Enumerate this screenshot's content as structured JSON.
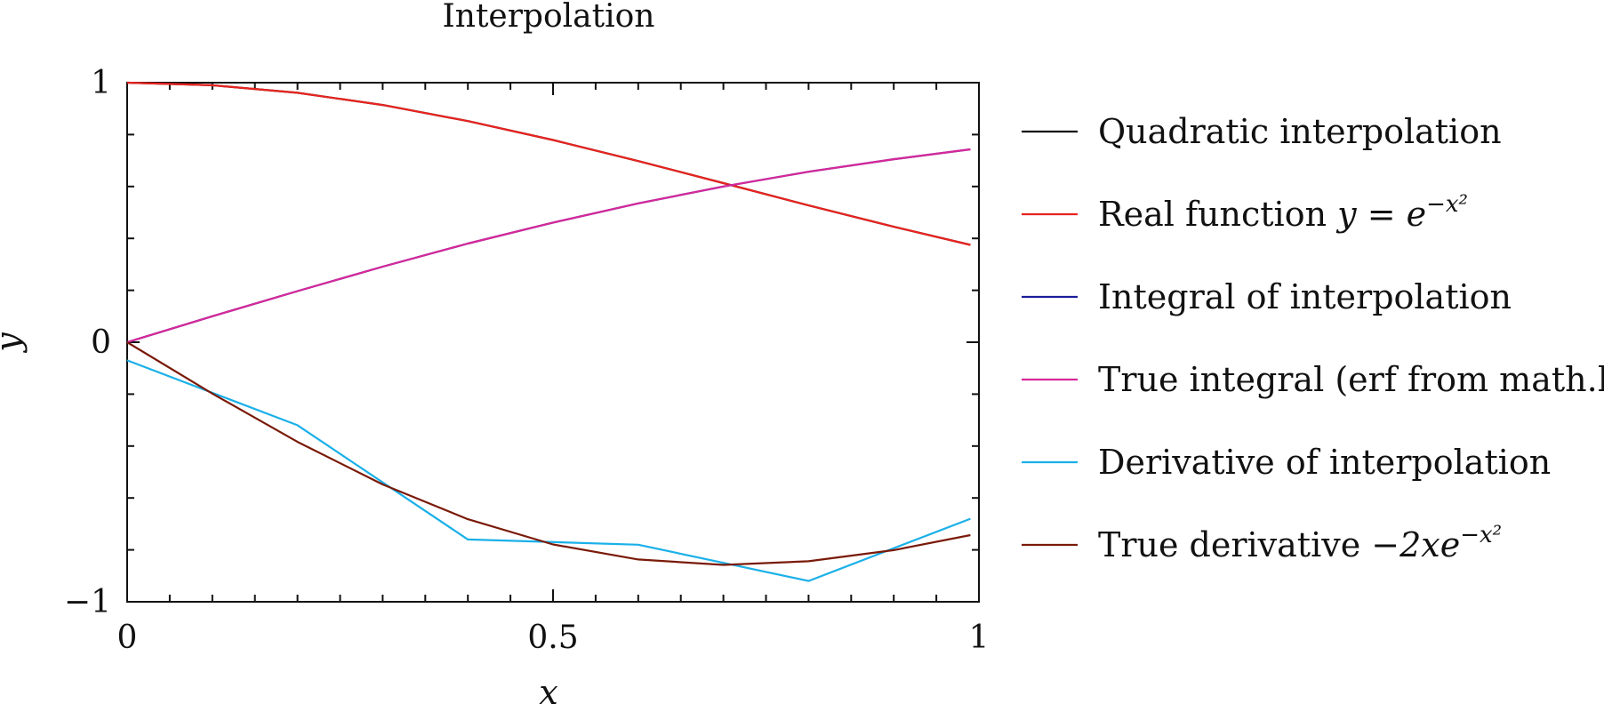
{
  "chart_data": {
    "type": "line",
    "title": "Interpolation",
    "xlabel": "x",
    "ylabel": "y",
    "xlim": [
      0,
      1
    ],
    "ylim": [
      -1,
      1
    ],
    "x_ticks": [
      {
        "value": 0,
        "label": "0"
      },
      {
        "value": 0.5,
        "label": "0.5"
      },
      {
        "value": 1,
        "label": "1"
      }
    ],
    "y_ticks": [
      {
        "value": -1,
        "label": "−1"
      },
      {
        "value": 0,
        "label": "0"
      },
      {
        "value": 1,
        "label": "1"
      }
    ],
    "x_minor_step": 0.05,
    "y_minor_step": 0.2,
    "grid": false,
    "legend_position": "outside-right",
    "series": [
      {
        "name": "Quadratic interpolation",
        "color": "#111111",
        "x": [
          0,
          0.1,
          0.2,
          0.3,
          0.4,
          0.5,
          0.6,
          0.7,
          0.8,
          0.9,
          0.99
        ],
        "y": [
          1.0,
          0.99,
          0.961,
          0.914,
          0.852,
          0.779,
          0.698,
          0.613,
          0.527,
          0.445,
          0.375
        ]
      },
      {
        "name": "Real function y = e^(−x²)",
        "color": "#e8231f",
        "x": [
          0,
          0.1,
          0.2,
          0.3,
          0.4,
          0.5,
          0.6,
          0.7,
          0.8,
          0.9,
          0.99
        ],
        "y": [
          1.0,
          0.99,
          0.961,
          0.914,
          0.852,
          0.779,
          0.698,
          0.613,
          0.527,
          0.445,
          0.375
        ]
      },
      {
        "name": "Integral of interpolation",
        "color": "#1c1c9c",
        "x": [
          0,
          0.1,
          0.2,
          0.3,
          0.4,
          0.5,
          0.6,
          0.7,
          0.8,
          0.9,
          0.99
        ],
        "y": [
          0,
          0.1,
          0.197,
          0.291,
          0.38,
          0.461,
          0.535,
          0.6,
          0.657,
          0.705,
          0.743
        ]
      },
      {
        "name": "True integral (erf from math.h)",
        "color": "#d6289a",
        "x": [
          0,
          0.1,
          0.2,
          0.3,
          0.4,
          0.5,
          0.6,
          0.7,
          0.8,
          0.9,
          0.99
        ],
        "y": [
          0,
          0.1,
          0.197,
          0.291,
          0.38,
          0.461,
          0.535,
          0.6,
          0.657,
          0.705,
          0.743
        ]
      },
      {
        "name": "Derivative of interpolation",
        "color": "#1ab0e8",
        "x": [
          0,
          0.2,
          0.4,
          0.6,
          0.8,
          0.99
        ],
        "y": [
          -0.07,
          -0.32,
          -0.76,
          -0.78,
          -0.92,
          -0.68
        ]
      },
      {
        "name": "True derivative −2xe^(−x²)",
        "color": "#7a1a08",
        "x": [
          0,
          0.1,
          0.2,
          0.3,
          0.4,
          0.5,
          0.6,
          0.7,
          0.8,
          0.9,
          0.99
        ],
        "y": [
          0,
          -0.198,
          -0.384,
          -0.548,
          -0.682,
          -0.779,
          -0.837,
          -0.858,
          -0.844,
          -0.801,
          -0.743
        ]
      }
    ]
  },
  "legend": [
    {
      "text": "Quadratic interpolation",
      "math": "",
      "sup": ""
    },
    {
      "text": "Real function ",
      "math": "y = e",
      "sup": "−x²"
    },
    {
      "text": "Integral of interpolation",
      "math": "",
      "sup": ""
    },
    {
      "text": "True integral (erf from math.h)",
      "math": "",
      "sup": ""
    },
    {
      "text": "Derivative of interpolation",
      "math": "",
      "sup": ""
    },
    {
      "text": "True derivative ",
      "math": "−2xe",
      "sup": "−x²"
    }
  ]
}
